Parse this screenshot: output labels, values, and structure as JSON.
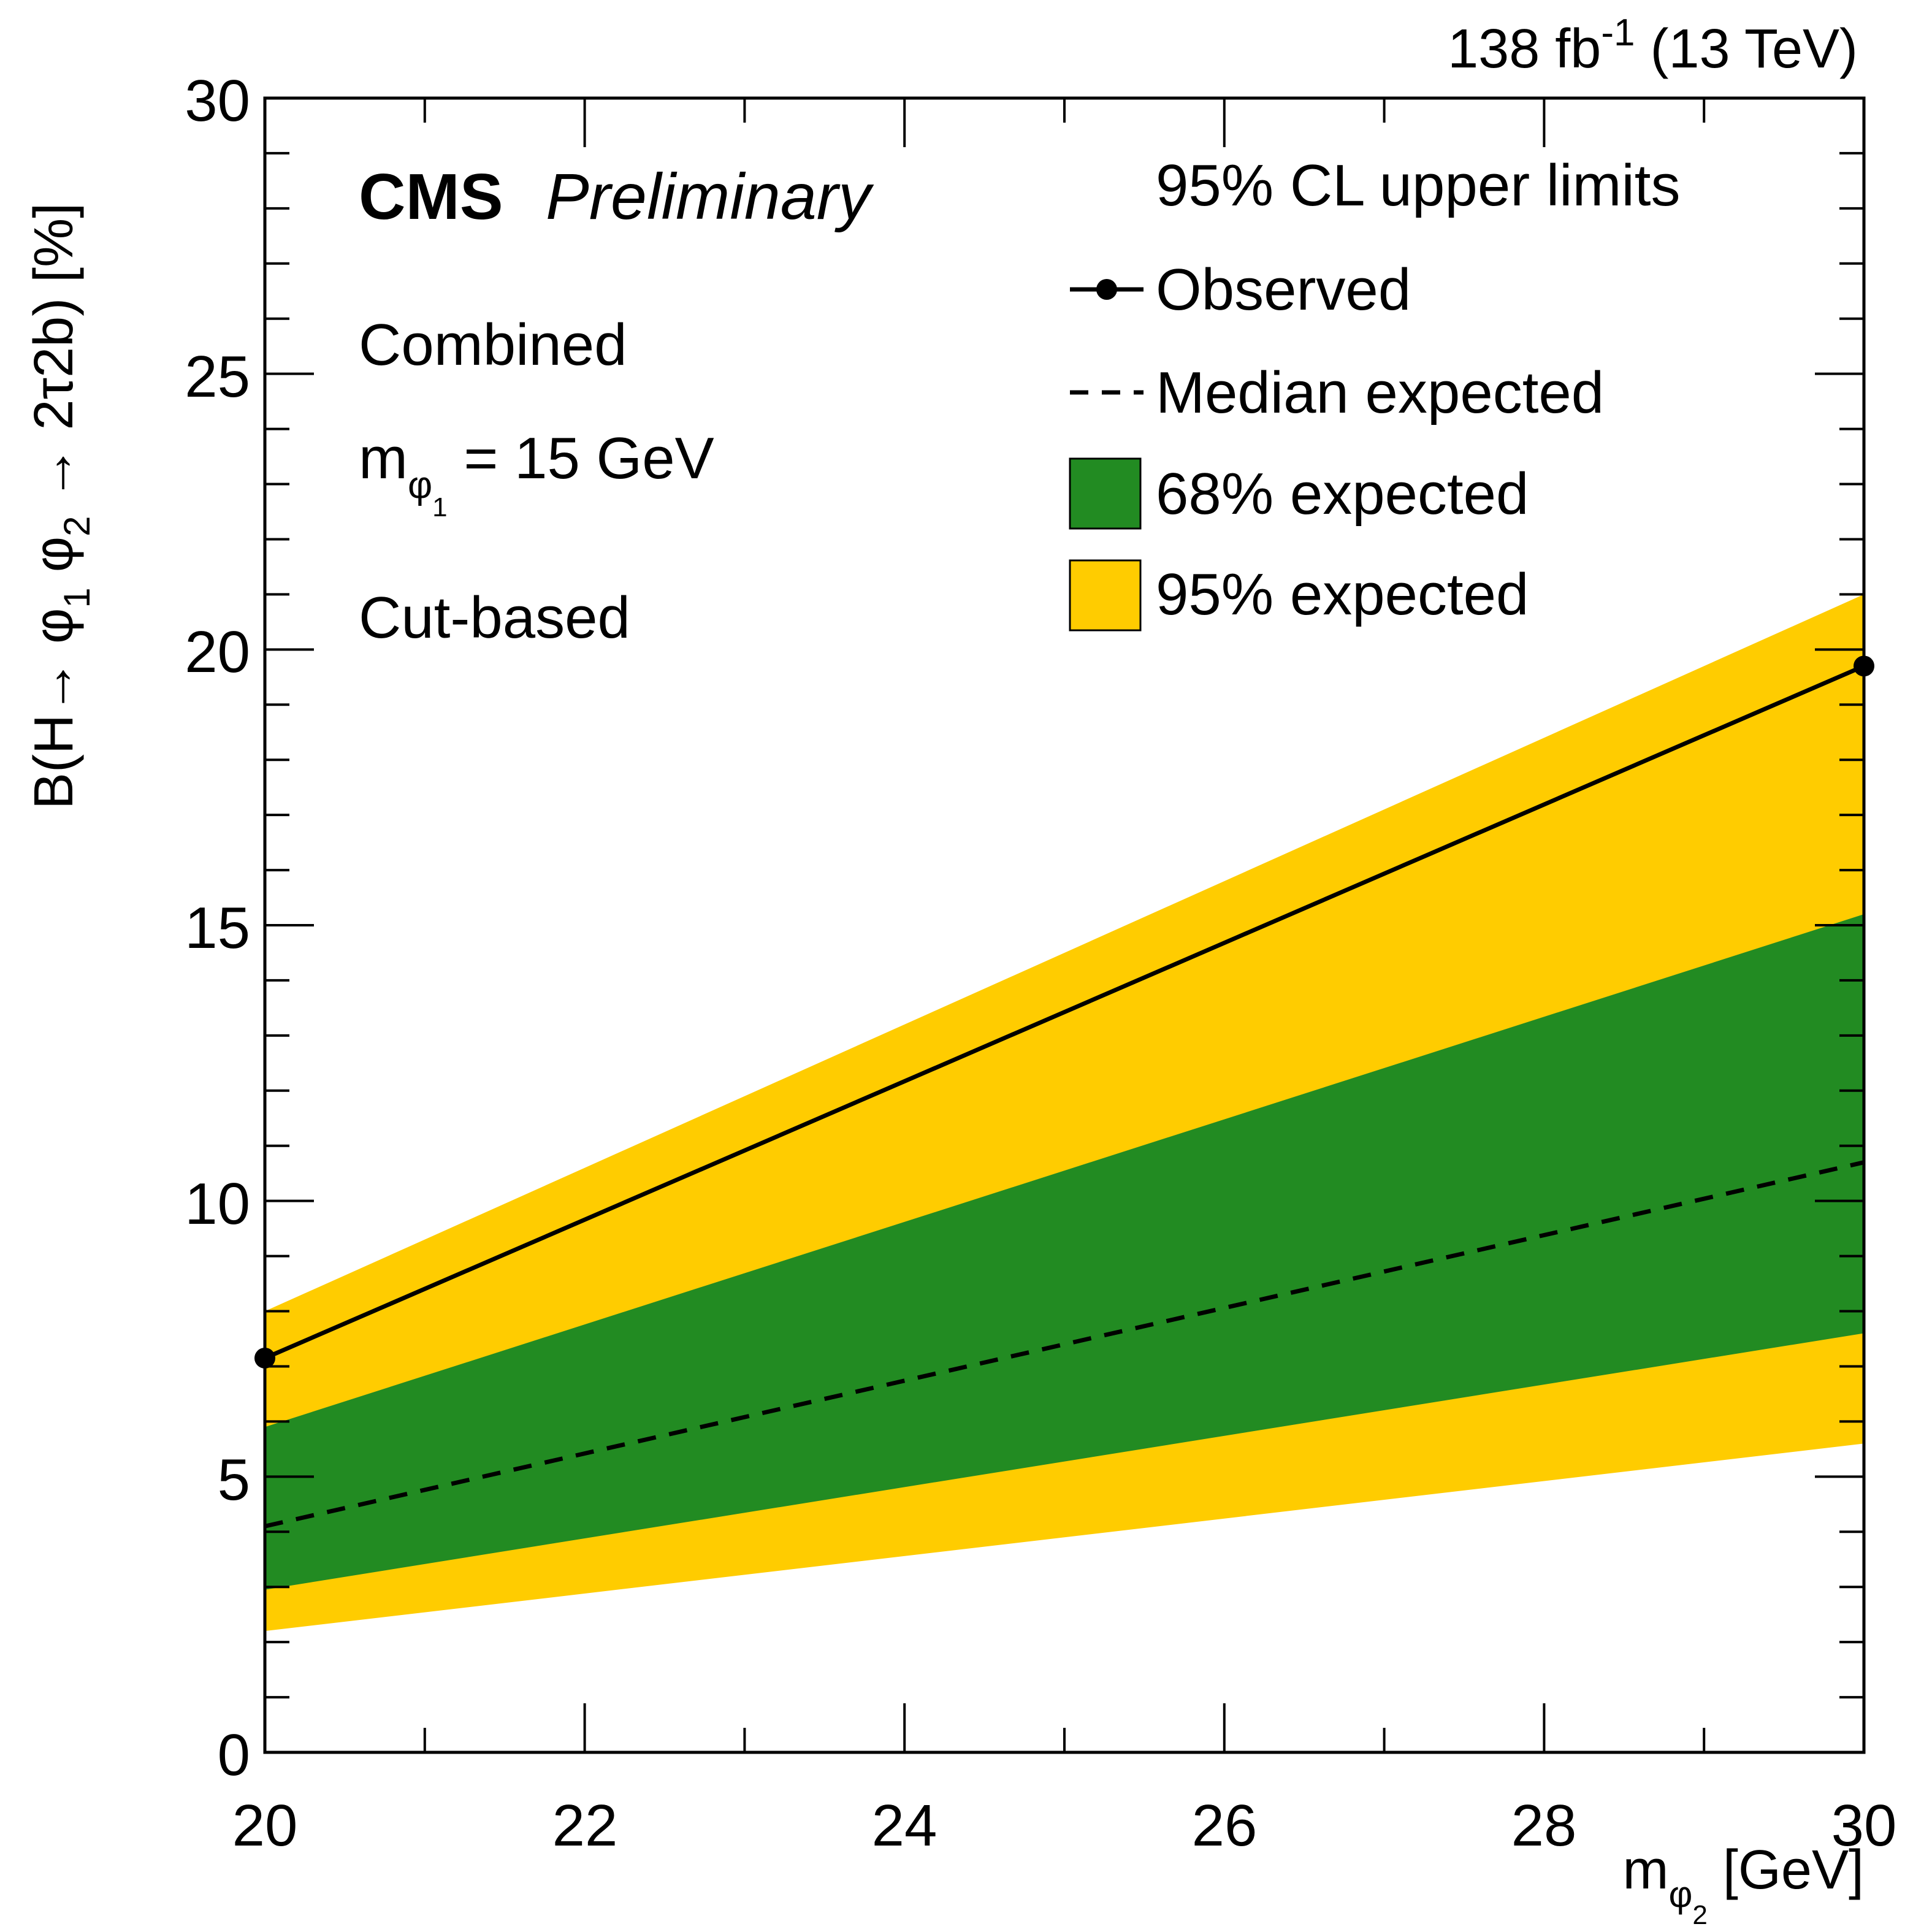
{
  "header": {
    "lumi_value": "138 fb",
    "lumi_exponent": "-1",
    "energy": " (13 TeV)"
  },
  "labels": {
    "experiment": "CMS",
    "status": "Preliminary",
    "channel": "Combined",
    "mass_point_prefix": "m",
    "mass_point_sub": "φ",
    "mass_point_subsub": "1",
    "mass_point_value": " = 15 GeV",
    "method": "Cut-based"
  },
  "legend": {
    "header": "95% CL upper limits",
    "observed": "Observed",
    "median": "Median expected",
    "band68": "68% expected",
    "band95": "95% expected"
  },
  "colors": {
    "band95": "#FFCC00",
    "band68": "#228B22",
    "line": "#000000"
  },
  "chart_data": {
    "type": "line",
    "title": "",
    "xlabel": "m_φ2 [GeV]",
    "ylabel": "B(H→ φ1 φ2 → 2τ2b) [%]",
    "xlim": [
      20,
      30
    ],
    "ylim": [
      0,
      30
    ],
    "xticks": [
      20,
      22,
      24,
      26,
      28,
      30
    ],
    "yticks": [
      0,
      5,
      10,
      15,
      20,
      25,
      30
    ],
    "x": [
      20,
      30
    ],
    "series": [
      {
        "name": "Observed",
        "values": [
          7.15,
          19.7
        ]
      },
      {
        "name": "Median expected",
        "values": [
          4.1,
          10.7
        ]
      },
      {
        "name": "68% expected low",
        "values": [
          2.95,
          7.6
        ]
      },
      {
        "name": "68% expected high",
        "values": [
          5.9,
          15.2
        ]
      },
      {
        "name": "95% expected low",
        "values": [
          2.2,
          5.6
        ]
      },
      {
        "name": "95% expected high",
        "values": [
          8.0,
          21.0
        ]
      }
    ]
  }
}
